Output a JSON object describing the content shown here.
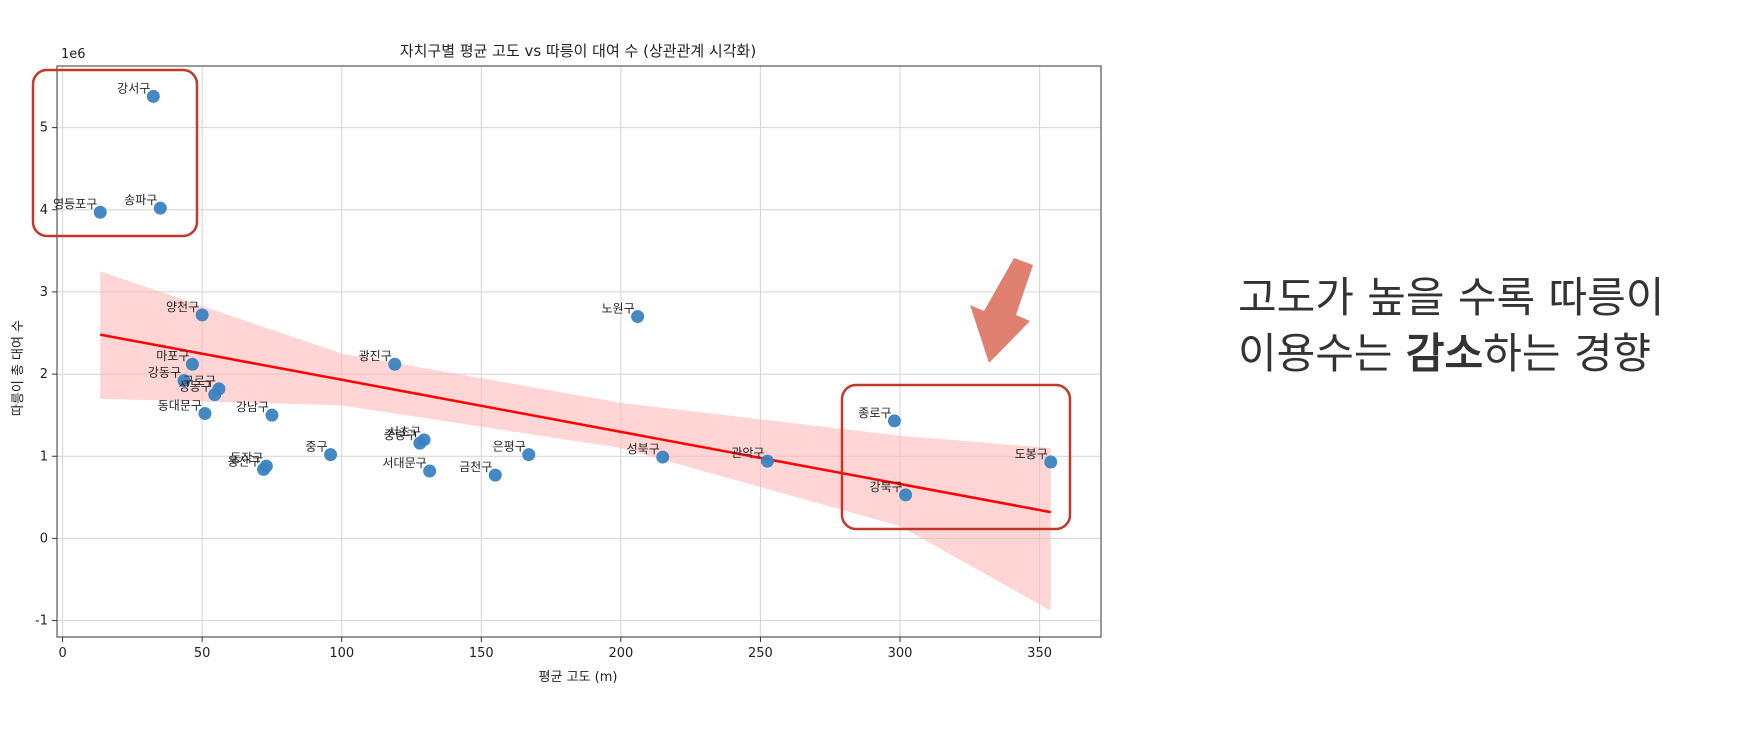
{
  "chart_data": {
    "type": "scatter",
    "title": "자치구별 평균 고도 vs 따릉이 대여 수 (상관관계 시각화)",
    "xlabel": "평균 고도 (m)",
    "ylabel": "따릉이 총 대여 수",
    "y_scale_label": "1e6",
    "xlim": [
      -2,
      372
    ],
    "ylim": [
      -1.2,
      5.75
    ],
    "xticks": [
      0,
      50,
      100,
      150,
      200,
      250,
      300,
      350
    ],
    "yticks": [
      -1,
      0,
      1,
      2,
      3,
      4,
      5
    ],
    "grid": true,
    "point_color": "#3a83c0",
    "line_color": "#ff0000",
    "band_color": "#ffb3b3",
    "highlight_color": "#c0392b",
    "arrow_color": "#e08070",
    "points": [
      {
        "label": "강서구",
        "x": 32.5,
        "y": 5.38
      },
      {
        "label": "영등포구",
        "x": 13.5,
        "y": 3.97
      },
      {
        "label": "송파구",
        "x": 35,
        "y": 4.02
      },
      {
        "label": "양천구",
        "x": 50,
        "y": 2.72
      },
      {
        "label": "마포구",
        "x": 46.5,
        "y": 2.12
      },
      {
        "label": "강동구",
        "x": 43.5,
        "y": 1.92
      },
      {
        "label": "구로구",
        "x": 56,
        "y": 1.82
      },
      {
        "label": "성동구",
        "x": 54.5,
        "y": 1.75
      },
      {
        "label": "동대문구",
        "x": 51,
        "y": 1.52
      },
      {
        "label": "강남구",
        "x": 75,
        "y": 1.5
      },
      {
        "label": "동작구",
        "x": 73,
        "y": 0.88
      },
      {
        "label": "용산구",
        "x": 72,
        "y": 0.84
      },
      {
        "label": "중구",
        "x": 96,
        "y": 1.02
      },
      {
        "label": "광진구",
        "x": 119,
        "y": 2.12
      },
      {
        "label": "서초구",
        "x": 129.5,
        "y": 1.2
      },
      {
        "label": "중랑구",
        "x": 128,
        "y": 1.16
      },
      {
        "label": "서대문구",
        "x": 131.5,
        "y": 0.82
      },
      {
        "label": "금천구",
        "x": 155,
        "y": 0.77
      },
      {
        "label": "은평구",
        "x": 167,
        "y": 1.02
      },
      {
        "label": "노원구",
        "x": 206,
        "y": 2.7
      },
      {
        "label": "성북구",
        "x": 215,
        "y": 0.99
      },
      {
        "label": "관악구",
        "x": 252.5,
        "y": 0.94
      },
      {
        "label": "종로구",
        "x": 298,
        "y": 1.43
      },
      {
        "label": "강북구",
        "x": 302,
        "y": 0.53
      },
      {
        "label": "도봉구",
        "x": 354,
        "y": 0.93
      }
    ],
    "regression": {
      "x": [
        13.5,
        354
      ],
      "y": [
        2.48,
        0.32
      ]
    },
    "ci_band": {
      "x": [
        13.5,
        100,
        200,
        300,
        354
      ],
      "upper": [
        3.25,
        2.25,
        1.65,
        1.25,
        1.1
      ],
      "lower": [
        1.7,
        1.62,
        1.1,
        0.15,
        -0.88
      ]
    }
  },
  "annotation": {
    "line1": "고도가 높을 수록 따릉이",
    "line2_prefix": "이용수는 ",
    "line2_bold": "감소",
    "line2_suffix": "하는 경향"
  }
}
